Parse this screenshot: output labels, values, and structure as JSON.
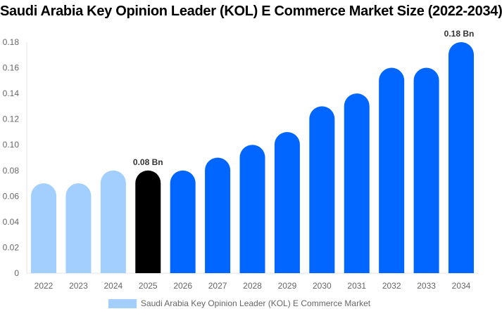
{
  "chart_data": {
    "type": "bar",
    "title": "Saudi Arabia Key Opinion Leader (KOL) E Commerce Market Size (2022-2034)",
    "categories": [
      "2022",
      "2023",
      "2024",
      "2025",
      "2026",
      "2027",
      "2028",
      "2029",
      "2030",
      "2031",
      "2032",
      "2033",
      "2034"
    ],
    "series": [
      {
        "name": "Saudi Arabia Key Opinion Leader (KOL) E Commerce Market",
        "values": [
          0.07,
          0.07,
          0.08,
          0.08,
          0.08,
          0.09,
          0.1,
          0.11,
          0.13,
          0.14,
          0.16,
          0.16,
          0.18
        ]
      }
    ],
    "ylim": [
      0,
      0.18
    ],
    "yticks": [
      "0",
      "0.02",
      "0.04",
      "0.06",
      "0.08",
      "0.10",
      "0.12",
      "0.14",
      "0.16",
      "0.18"
    ],
    "data_labels": [
      {
        "category": "2025",
        "text": "0.08 Bn"
      },
      {
        "category": "2034",
        "text": "0.18 Bn"
      }
    ],
    "colors": {
      "historical": "#a3cfff",
      "current": "#000000",
      "forecast": "#0066ff"
    },
    "grid": false,
    "legend": "bottom"
  }
}
